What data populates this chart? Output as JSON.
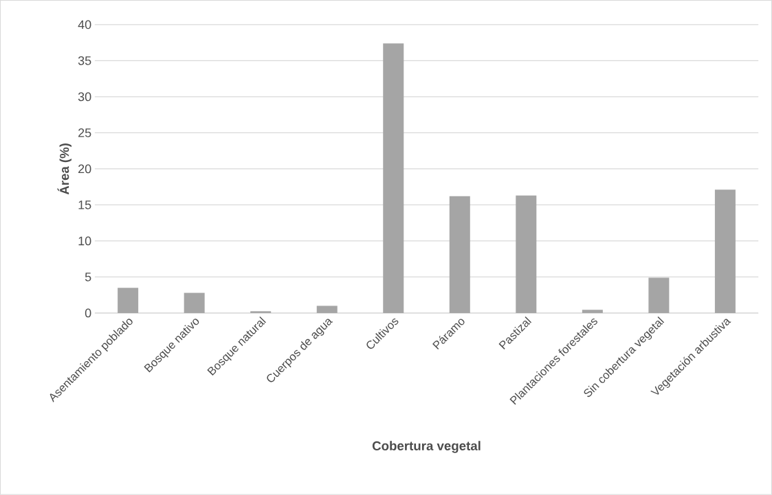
{
  "chart_data": {
    "type": "bar",
    "xlabel": "Cobertura vegetal",
    "ylabel": "Área (%)",
    "categories": [
      "Asentamiento poblado",
      "Bosque nativo",
      "Bosque natural",
      "Cuerpos de agua",
      "Cultivos",
      "Páramo",
      "Pastizal",
      "Plantaciones forestales",
      "Sin cobertura vegetal",
      "Vegetación arbustiva"
    ],
    "values": [
      3.5,
      2.8,
      0.25,
      1.0,
      37.4,
      16.2,
      16.3,
      0.45,
      4.9,
      17.1
    ],
    "color": "#a5a5a5",
    "ylim": [
      0,
      40
    ],
    "yticks": [
      0,
      5,
      10,
      15,
      20,
      25,
      30,
      35,
      40
    ],
    "grid": "y"
  }
}
